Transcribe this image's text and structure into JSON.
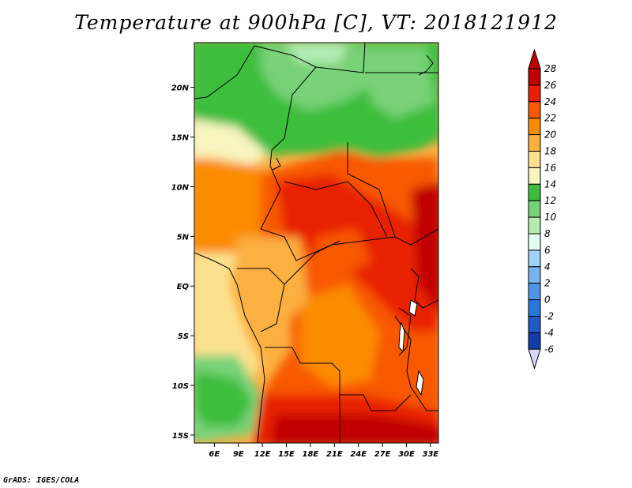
{
  "title": "Temperature at 900hPa [C], VT: 2018121912",
  "credit": "GrADS: IGES/COLA",
  "map": {
    "lat_ticks": [
      "20N",
      "15N",
      "10N",
      "5N",
      "EQ",
      "5S",
      "10S",
      "15S"
    ],
    "lon_ticks": [
      "6E",
      "9E",
      "12E",
      "15E",
      "18E",
      "21E",
      "24E",
      "27E",
      "30E",
      "33E"
    ],
    "lon_range": [
      3.5,
      34
    ],
    "lat_range": [
      -15.8,
      24.5
    ]
  },
  "colorbar": {
    "levels": [
      "28",
      "26",
      "24",
      "22",
      "20",
      "18",
      "16",
      "14",
      "12",
      "10",
      "8",
      "6",
      "4",
      "2",
      "0",
      "-2",
      "-4",
      "-6"
    ],
    "colors": [
      "#c00000",
      "#e82000",
      "#f85800",
      "#fb8c00",
      "#fbb040",
      "#fce290",
      "#f8f5c0",
      "#3cbe3c",
      "#78d278",
      "#b4ecb4",
      "#e0fff0",
      "#a0d2fa",
      "#78b4f0",
      "#5096e6",
      "#2878dc",
      "#1e5ac8",
      "#143caa",
      "#0a1e78"
    ]
  }
}
